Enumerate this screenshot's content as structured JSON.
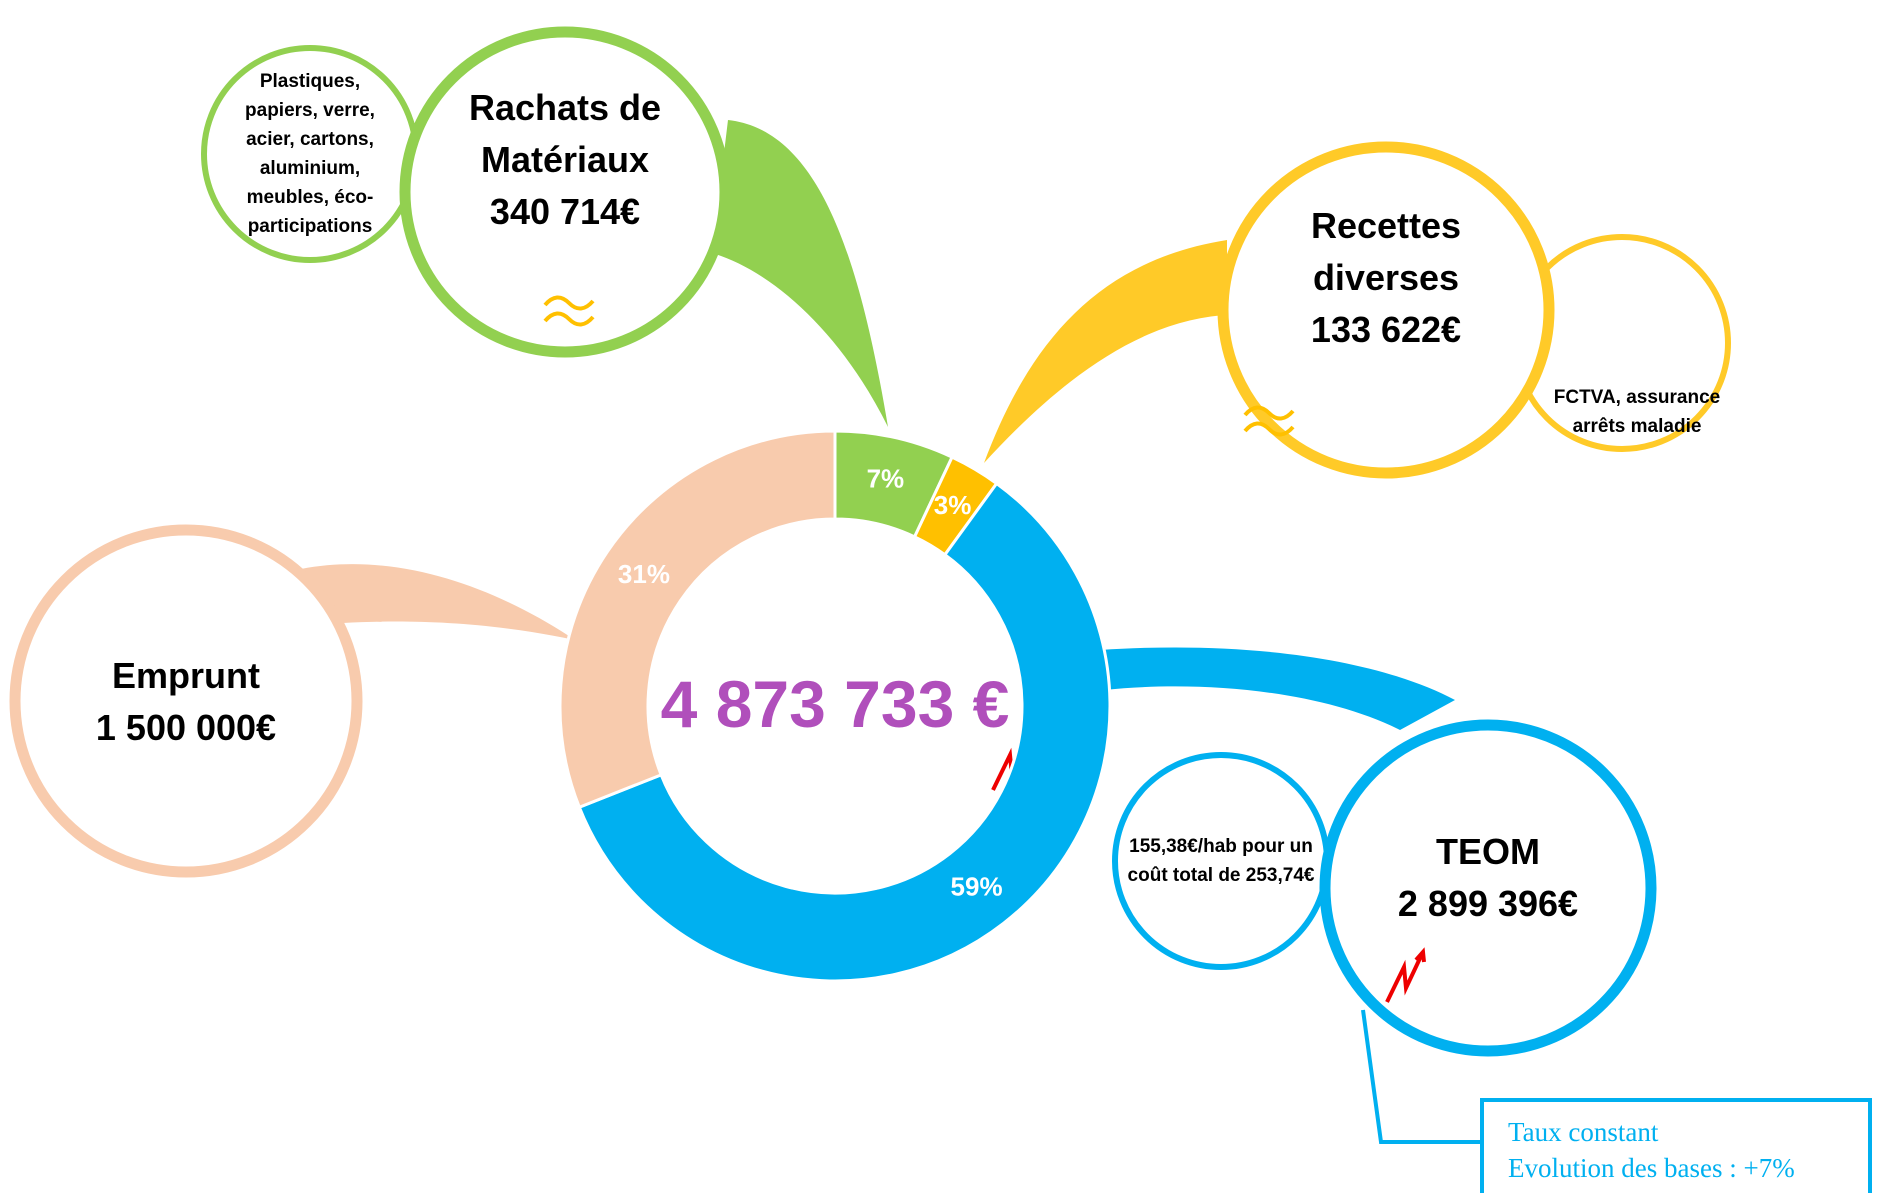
{
  "chart_data": {
    "type": "donut",
    "center_label": "4 873 733 €",
    "categories": [
      "Rachats de Matériaux",
      "Recettes diverses",
      "TEOM",
      "Emprunt"
    ],
    "values": [
      7,
      3,
      59,
      31
    ],
    "value_labels": [
      "7%",
      "3%",
      "59%",
      "31%"
    ],
    "colors": [
      "#92d050",
      "#ffc000",
      "#00b0f0",
      "#f8cbad"
    ],
    "amounts": [
      "340 714€",
      "133 622€",
      "2 899 396€",
      "1 500 000€"
    ],
    "details": {
      "materiaux": "Plastiques, papiers, verre, acier, cartons, aluminium, meubles, éco-participations",
      "recettes": "FCTVA, assurance arrêts maladie",
      "teom": "155,38€/hab pour un coût total de 253,74€"
    },
    "note": [
      "Taux constant",
      "Evolution des bases : +7%"
    ]
  }
}
